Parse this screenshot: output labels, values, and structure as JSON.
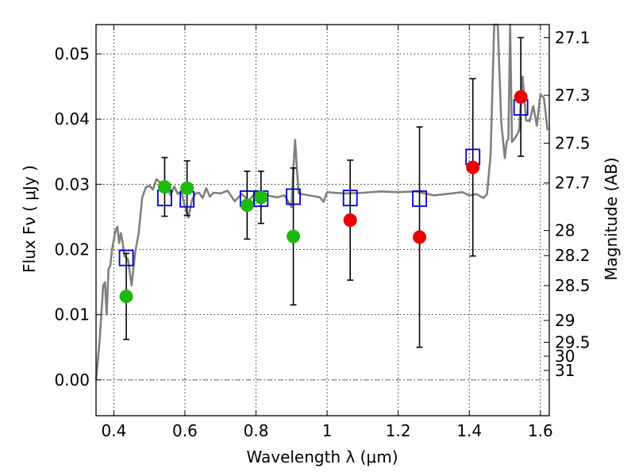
{
  "chart_data": {
    "type": "scatter",
    "xlabel": "Wavelength  λ (μm)",
    "ylabel": "Flux  Fν  ( μJy )",
    "y2label": "Magnitude (AB)",
    "xlim": [
      0.35,
      1.625
    ],
    "ylim": [
      -0.0055,
      0.0545
    ],
    "x_ticks": [
      0.4,
      0.6,
      0.8,
      1.0,
      1.2,
      1.4,
      1.6
    ],
    "x_tick_labels": [
      "0.4",
      "0.6",
      "0.8",
      "1",
      "1.2",
      "1.4",
      "1.6"
    ],
    "y_ticks": [
      0.0,
      0.01,
      0.02,
      0.03,
      0.04,
      0.05
    ],
    "y_tick_labels": [
      "0.00",
      "0.01",
      "0.02",
      "0.03",
      "0.04",
      "0.05"
    ],
    "mag_ticks": [
      27.1,
      27.3,
      27.5,
      27.7,
      28,
      28.2,
      28.5,
      29,
      29.5,
      30,
      31
    ],
    "mag_tick_labels": [
      "27.1",
      "27.3",
      "27.5",
      "27.7",
      "28",
      "28.2",
      "28.5",
      "29",
      "29.5",
      "30",
      "31"
    ],
    "grid": true,
    "colors": {
      "model": "#808080",
      "green": "#1fb80f",
      "red": "#ee0000",
      "squares": "#0000cc",
      "errorbar": "#000000"
    },
    "model_spectrum": {
      "name": "model SED",
      "x": [
        0.35,
        0.36,
        0.365,
        0.37,
        0.375,
        0.38,
        0.385,
        0.39,
        0.395,
        0.4,
        0.405,
        0.41,
        0.415,
        0.42,
        0.425,
        0.43,
        0.44,
        0.45,
        0.46,
        0.47,
        0.48,
        0.49,
        0.5,
        0.51,
        0.52,
        0.53,
        0.54,
        0.55,
        0.56,
        0.57,
        0.58,
        0.59,
        0.6,
        0.61,
        0.62,
        0.63,
        0.64,
        0.65,
        0.66,
        0.67,
        0.68,
        0.7,
        0.72,
        0.74,
        0.76,
        0.78,
        0.8,
        0.82,
        0.84,
        0.86,
        0.88,
        0.9,
        0.905,
        0.91,
        0.915,
        0.92,
        0.94,
        0.96,
        0.98,
        0.99,
        1.0,
        1.02,
        1.05,
        1.1,
        1.15,
        1.2,
        1.25,
        1.3,
        1.35,
        1.38,
        1.4,
        1.42,
        1.44,
        1.45,
        1.46,
        1.47,
        1.48,
        1.49,
        1.5,
        1.505,
        1.51,
        1.515,
        1.52,
        1.53,
        1.54,
        1.55,
        1.56,
        1.57,
        1.58,
        1.59,
        1.6,
        1.61,
        1.62
      ],
      "y": [
        0.0,
        0.006,
        0.01,
        0.0145,
        0.015,
        0.01,
        0.017,
        0.0175,
        0.02,
        0.0215,
        0.023,
        0.0235,
        0.021,
        0.0225,
        0.021,
        0.019,
        0.0185,
        0.0145,
        0.0195,
        0.0225,
        0.028,
        0.0295,
        0.0298,
        0.0292,
        0.0308,
        0.0303,
        0.0294,
        0.0298,
        0.0283,
        0.0297,
        0.0285,
        0.0289,
        0.0266,
        0.0249,
        0.0276,
        0.0286,
        0.0287,
        0.0279,
        0.0294,
        0.0281,
        0.0287,
        0.0286,
        0.029,
        0.0274,
        0.0285,
        0.0275,
        0.0288,
        0.0284,
        0.0282,
        0.028,
        0.0283,
        0.0265,
        0.0325,
        0.0368,
        0.0325,
        0.0286,
        0.0284,
        0.0282,
        0.028,
        0.0273,
        0.0288,
        0.0287,
        0.0286,
        0.0287,
        0.0289,
        0.0288,
        0.0289,
        0.0283,
        0.0286,
        0.0288,
        0.0283,
        0.0285,
        0.0279,
        0.0285,
        0.0345,
        0.0548,
        0.0548,
        0.0395,
        0.034,
        0.0365,
        0.037,
        0.0548,
        0.0365,
        0.0372,
        0.0382,
        0.0465,
        0.0398,
        0.0397,
        0.042,
        0.039,
        0.0438,
        0.0432,
        0.0383
      ]
    },
    "series": [
      {
        "name": "green points",
        "marker": "circle",
        "x": [
          0.435,
          0.543,
          0.606,
          0.775,
          0.814,
          0.905
        ],
        "y": [
          0.0128,
          0.0296,
          0.0294,
          0.0268,
          0.028,
          0.022
        ],
        "err": [
          0.0066,
          0.0045,
          0.0042,
          0.0052,
          0.004,
          0.0105
        ]
      },
      {
        "name": "red points",
        "marker": "circle",
        "x": [
          1.065,
          1.26,
          1.41,
          1.545
        ],
        "y": [
          0.0245,
          0.0219,
          0.0326,
          0.0434
        ],
        "err": [
          0.0092,
          0.0169,
          0.0136,
          0.0091
        ]
      },
      {
        "name": "model band fluxes",
        "marker": "open-square",
        "x": [
          0.435,
          0.543,
          0.606,
          0.775,
          0.814,
          0.905,
          1.065,
          1.26,
          1.41,
          1.545
        ],
        "y": [
          0.0187,
          0.0279,
          0.0277,
          0.0278,
          0.0278,
          0.0281,
          0.0279,
          0.0278,
          0.0342,
          0.0418
        ]
      }
    ]
  }
}
